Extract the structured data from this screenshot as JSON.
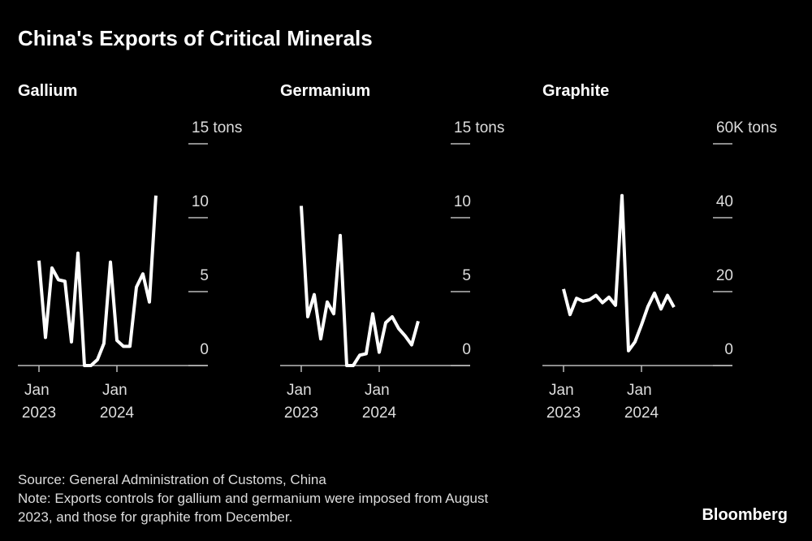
{
  "title": "China's Exports of Critical Minerals",
  "source": "Source: General Administration of Customs, China",
  "note": [
    "Note: Exports controls for gallium and germanium were imposed from August",
    "2023, and those for graphite from December."
  ],
  "logo": "Bloomberg",
  "chart_data": [
    {
      "type": "line",
      "title": "Gallium",
      "categories": [
        "Jan 2023",
        null,
        null,
        null,
        null,
        null,
        null,
        null,
        null,
        null,
        null,
        null,
        "Jan 2024",
        null,
        null,
        null,
        null,
        null,
        null
      ],
      "series": [
        {
          "color": "#ffffff",
          "values": [
            7.1,
            1.9,
            6.6,
            5.8,
            5.7,
            1.6,
            7.6,
            0,
            0,
            0.4,
            1.5,
            7.0,
            1.7,
            1.3,
            1.3,
            5.3,
            6.2,
            4.3,
            11.5
          ]
        }
      ],
      "ylim": [
        0,
        15
      ],
      "yticks": [
        0,
        5,
        10,
        {
          "value": 15,
          "label": "15 tons"
        }
      ]
    },
    {
      "type": "line",
      "title": "Germanium",
      "categories": [
        "Jan 2023",
        null,
        null,
        null,
        null,
        null,
        null,
        null,
        null,
        null,
        null,
        null,
        "Jan 2024",
        null,
        null,
        null,
        null,
        null,
        null
      ],
      "series": [
        {
          "color": "#ffffff",
          "values": [
            10.8,
            3.3,
            4.8,
            1.8,
            4.3,
            3.5,
            8.8,
            0,
            0,
            0.7,
            0.8,
            3.5,
            0.9,
            2.9,
            3.3,
            2.5,
            2.0,
            1.4,
            3.0
          ]
        }
      ],
      "ylim": [
        0,
        15
      ],
      "yticks": [
        0,
        5,
        10,
        {
          "value": 15,
          "label": "15 tons"
        }
      ]
    },
    {
      "type": "line",
      "title": "Graphite",
      "categories": [
        "Jan 2023",
        null,
        null,
        null,
        null,
        null,
        null,
        null,
        null,
        null,
        null,
        null,
        "Jan 2024",
        null,
        null,
        null,
        null,
        null
      ],
      "series": [
        {
          "color": "#ffffff",
          "values": [
            20.7,
            13.8,
            18.2,
            17.4,
            17.8,
            19,
            17,
            18.5,
            16.3,
            46,
            4,
            6.4,
            11,
            16,
            19.6,
            15.3,
            19,
            15.8
          ]
        }
      ],
      "ylim": [
        0,
        60
      ],
      "yticks": [
        0,
        20,
        40,
        {
          "value": 60,
          "label": "60K tons"
        }
      ]
    }
  ]
}
